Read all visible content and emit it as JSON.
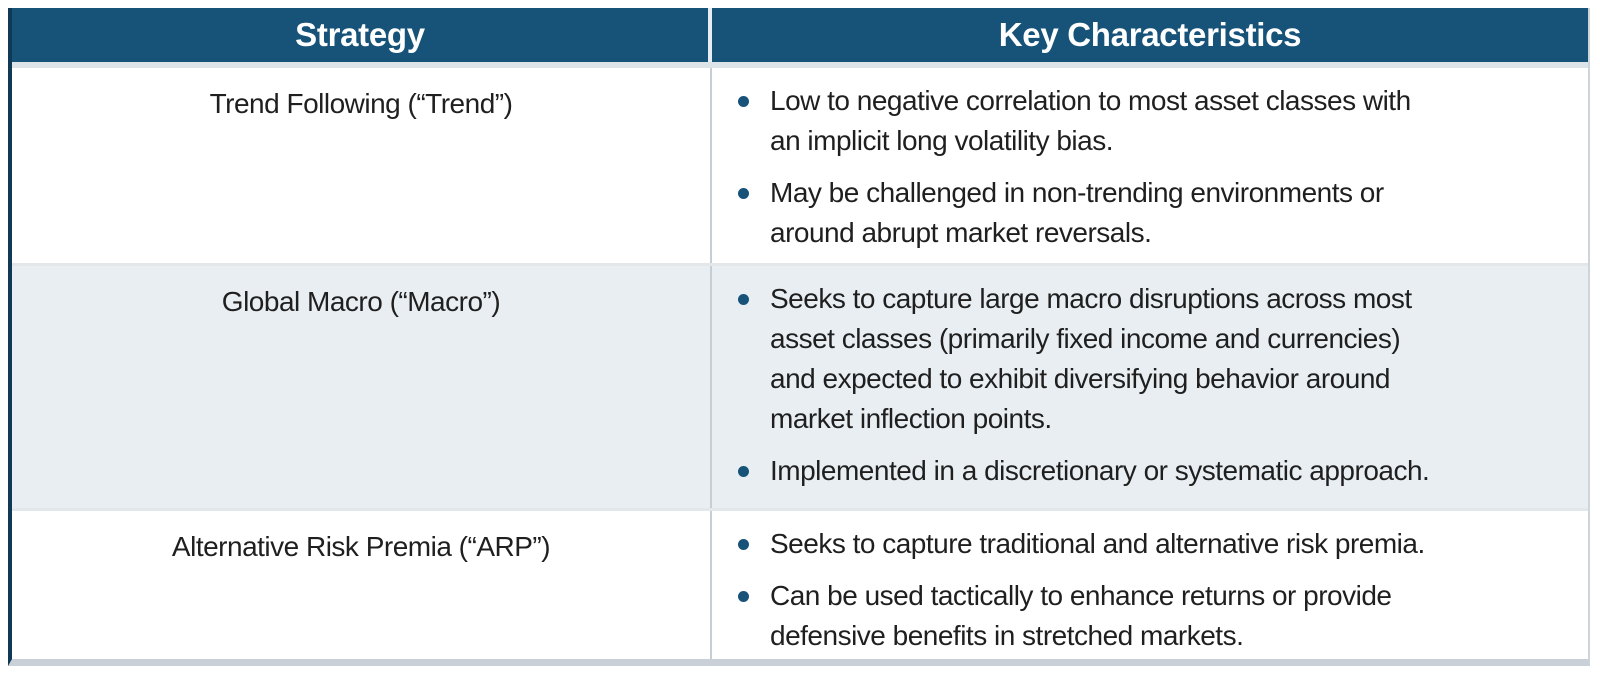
{
  "table": {
    "headers": [
      "Strategy",
      "Key Characteristics"
    ],
    "rows": [
      {
        "strategy": "Trend Following (“Trend”)",
        "bullets": [
          "Low to negative correlation to most asset classes with\nan implicit long volatility bias.",
          "May be challenged in non-trending environments or\naround abrupt market reversals."
        ]
      },
      {
        "strategy": "Global Macro (“Macro”)",
        "bullets": [
          "Seeks to capture large macro disruptions across most\nasset classes (primarily fixed income and currencies)\nand expected to exhibit diversifying behavior around\nmarket inflection points.",
          "Implemented in a discretionary or systematic approach."
        ]
      },
      {
        "strategy": "Alternative Risk Premia (“ARP”)",
        "bullets": [
          "Seeks to capture traditional and alternative risk premia.",
          "Can be used tactically to enhance returns or provide\ndefensive benefits in stretched markets."
        ]
      }
    ],
    "colors": {
      "header_bg": "#175378",
      "header_text": "#FFFFFF",
      "bullet": "#175378",
      "alt_row_bg": "#E9EEF2",
      "left_border": "#103956",
      "bottom_border": "#C9D0D7"
    }
  }
}
